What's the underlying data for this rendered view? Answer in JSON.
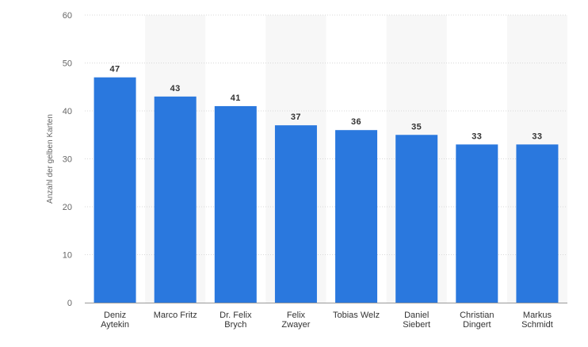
{
  "chart_data": {
    "type": "bar",
    "categories": [
      [
        "Deniz",
        "Aytekin"
      ],
      [
        "Marco Fritz"
      ],
      [
        "Dr. Felix",
        "Brych"
      ],
      [
        "Felix",
        "Zwayer"
      ],
      [
        "Tobias Welz"
      ],
      [
        "Daniel",
        "Siebert"
      ],
      [
        "Christian",
        "Dingert"
      ],
      [
        "Markus",
        "Schmidt"
      ]
    ],
    "values": [
      47,
      43,
      41,
      37,
      36,
      35,
      33,
      33
    ],
    "title": "",
    "xlabel": "",
    "ylabel": "Anzahl der gelben Karten",
    "ylim": [
      0,
      60
    ],
    "yticks": [
      0,
      10,
      20,
      30,
      40,
      50,
      60
    ],
    "grid": true,
    "legend": "none",
    "colors": {
      "bar": "#2a78de",
      "band": "#f7f7f7",
      "grid": "#d8d8d8",
      "axis": "#999999"
    }
  }
}
